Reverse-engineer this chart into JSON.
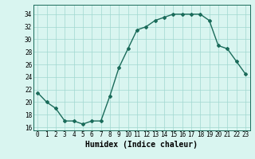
{
  "x": [
    0,
    1,
    2,
    3,
    4,
    5,
    6,
    7,
    8,
    9,
    10,
    11,
    12,
    13,
    14,
    15,
    16,
    17,
    18,
    19,
    20,
    21,
    22,
    23
  ],
  "y": [
    21.5,
    20.0,
    19.0,
    17.0,
    17.0,
    16.5,
    17.0,
    17.0,
    21.0,
    25.5,
    28.5,
    31.5,
    32.0,
    33.0,
    33.5,
    34.0,
    34.0,
    34.0,
    34.0,
    33.0,
    29.0,
    28.5,
    26.5,
    24.5
  ],
  "line_color": "#1a6b5a",
  "marker": "D",
  "marker_size": 2,
  "bg_color": "#d9f5f0",
  "grid_color": "#a0d8cf",
  "xlabel": "Humidex (Indice chaleur)",
  "xlim": [
    -0.5,
    23.5
  ],
  "ylim": [
    15.5,
    35.5
  ],
  "yticks": [
    16,
    18,
    20,
    22,
    24,
    26,
    28,
    30,
    32,
    34
  ],
  "xticks": [
    0,
    1,
    2,
    3,
    4,
    5,
    6,
    7,
    8,
    9,
    10,
    11,
    12,
    13,
    14,
    15,
    16,
    17,
    18,
    19,
    20,
    21,
    22,
    23
  ],
  "tick_fontsize": 5.5,
  "xlabel_fontsize": 7.0,
  "line_width": 1.0
}
